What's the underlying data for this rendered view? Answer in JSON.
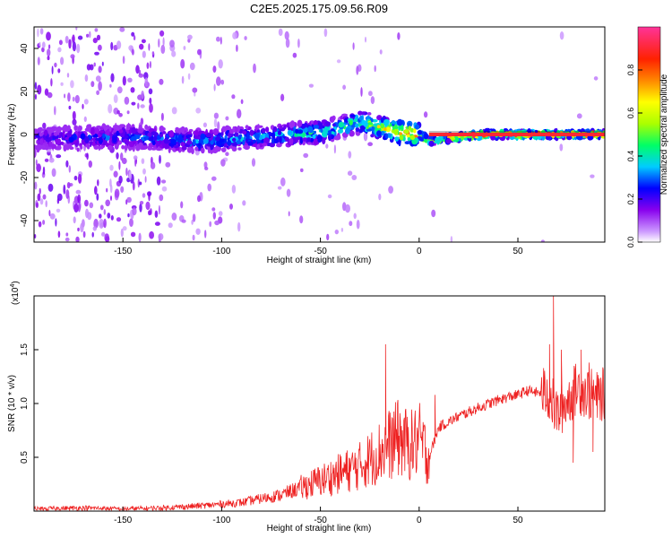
{
  "title": "C2E5.2025.175.09.56.R09",
  "chart_data": [
    {
      "type": "heatmap",
      "xlabel": "Height of straight line (km)",
      "ylabel": "Frequency (Hz)",
      "xlim": [
        -195,
        94
      ],
      "ylim": [
        -50,
        50
      ],
      "xticks": [
        -150,
        -100,
        -50,
        0,
        50
      ],
      "yticks": [
        -40,
        -20,
        0,
        20,
        40
      ],
      "colorbar": {
        "label": "Normalized spectral amplitude",
        "range": [
          0,
          1
        ],
        "ticks": [
          "0.0",
          "0.2",
          "0.4",
          "0.6",
          "0.8"
        ],
        "colors": [
          "#ffffff",
          "#cc99ff",
          "#8800ee",
          "#0000ff",
          "#00ccff",
          "#00ff66",
          "#aaff00",
          "#ffff00",
          "#ff8800",
          "#ff2200",
          "#ff3399"
        ]
      },
      "ridge": [
        {
          "x": -190,
          "f": -2,
          "amp": 0.25
        },
        {
          "x": -150,
          "f": -1,
          "amp": 0.3
        },
        {
          "x": -110,
          "f": -3,
          "amp": 0.35
        },
        {
          "x": -80,
          "f": -1,
          "amp": 0.4
        },
        {
          "x": -50,
          "f": 1,
          "amp": 0.45
        },
        {
          "x": -30,
          "f": 6,
          "amp": 0.5
        },
        {
          "x": -10,
          "f": 1,
          "amp": 0.8
        },
        {
          "x": 0,
          "f": 0,
          "amp": 0.85
        },
        {
          "x": 5,
          "f": -3,
          "amp": 0.6
        },
        {
          "x": 30,
          "f": 0,
          "amp": 0.95
        },
        {
          "x": 70,
          "f": 0,
          "amp": 0.9
        },
        {
          "x": 94,
          "f": 0,
          "amp": 0.9
        }
      ]
    },
    {
      "type": "line",
      "xlabel": "Height of straight line (km)",
      "ylabel": "SNR (10 * v/v)",
      "yscale_label": "(x10",
      "yscale_exp": "4",
      "xlim": [
        -195,
        94
      ],
      "ylim": [
        0,
        2.0
      ],
      "xticks": [
        -150,
        -100,
        -50,
        0,
        50
      ],
      "yticks": [
        "0.5",
        "1.0",
        "1.5"
      ],
      "ytick_values": [
        0.5,
        1.0,
        1.5
      ],
      "series": [
        {
          "color": "#ee2222",
          "x": [
            -195,
            -170,
            -150,
            -130,
            -110,
            -90,
            -70,
            -55,
            -40,
            -30,
            -20,
            -15,
            -10,
            -5,
            0,
            5,
            10,
            20,
            30,
            40,
            45,
            50,
            55,
            60,
            65,
            70,
            80,
            90,
            94
          ],
          "y": [
            0.02,
            0.03,
            0.02,
            0.03,
            0.05,
            0.08,
            0.15,
            0.25,
            0.35,
            0.42,
            0.55,
            0.62,
            0.68,
            0.6,
            0.66,
            0.5,
            0.78,
            0.88,
            0.96,
            1.03,
            1.06,
            1.08,
            1.12,
            1.1,
            1.1,
            0.9,
            1.15,
            1.05,
            1.1
          ],
          "spikes": [
            {
              "x": -17,
              "y": 1.55
            },
            {
              "x": -11,
              "y": 1.0
            },
            {
              "x": 8,
              "y": 1.08
            },
            {
              "x": 5,
              "y": 0.3
            },
            {
              "x": 42,
              "y": 1.07
            },
            {
              "x": 66,
              "y": 1.55
            },
            {
              "x": 68,
              "y": 2.0
            },
            {
              "x": 72,
              "y": 1.5
            },
            {
              "x": 78,
              "y": 0.45
            },
            {
              "x": 82,
              "y": 1.5
            },
            {
              "x": 86,
              "y": 1.38
            },
            {
              "x": 88,
              "y": 0.55
            }
          ]
        }
      ]
    }
  ]
}
